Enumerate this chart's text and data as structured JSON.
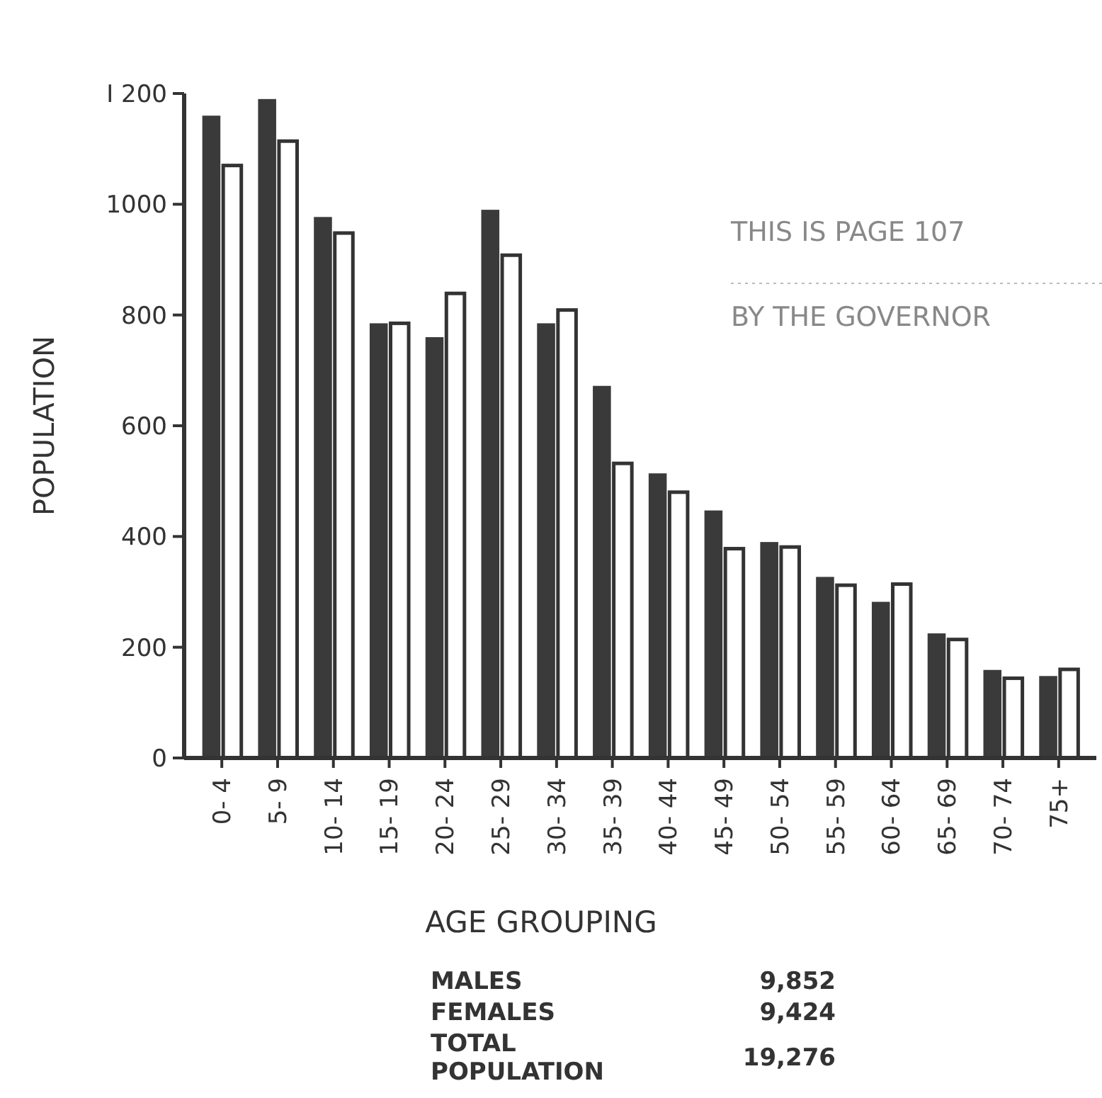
{
  "chart_data": {
    "type": "bar",
    "xlabel": "AGE GROUPING",
    "ylabel": "POPULATION",
    "categories": [
      "0- 4",
      "5- 9",
      "10- 14",
      "15- 19",
      "20- 24",
      "25- 29",
      "30- 34",
      "35- 39",
      "40- 44",
      "45- 49",
      "50- 54",
      "55- 59",
      "60- 64",
      "65- 69",
      "70- 74",
      "75+"
    ],
    "series": [
      {
        "color": "#3a3a3a",
        "values": [
          1160,
          1190,
          977,
          785,
          760,
          990,
          785,
          672,
          514,
          447,
          390,
          327,
          282,
          225,
          159,
          148
        ]
      },
      {
        "color": "#ffffff",
        "values": [
          1070,
          1114,
          948,
          785,
          839,
          908,
          809,
          532,
          480,
          378,
          381,
          312,
          314,
          214,
          144,
          160
        ]
      }
    ],
    "ylim": [
      0,
      1200
    ],
    "yticks": [
      0,
      200,
      400,
      600,
      800,
      1000,
      {
        "value": 1200,
        "label": "I 200"
      }
    ],
    "grid": false,
    "annotations": [
      "THIS IS PAGE 107",
      "BY THE GOVERNOR",
      "MALES",
      "9,852",
      "FEMALES",
      "9,424",
      "TOTAL POPULATION",
      "19,276"
    ]
  }
}
